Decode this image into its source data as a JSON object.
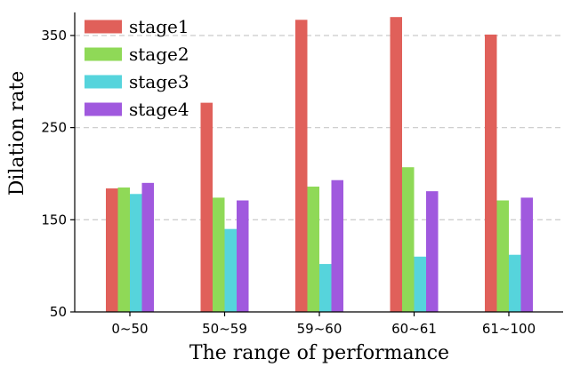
{
  "chart_data": {
    "type": "bar",
    "xlabel": "The range of performance",
    "ylabel": "Dilation rate",
    "categories": [
      "0~50",
      "50~59",
      "59~60",
      "60~61",
      "61~100"
    ],
    "ylim": [
      50,
      375
    ],
    "yticks": [
      50,
      150,
      250,
      350
    ],
    "grid": "horizontal dashed at y ticks",
    "legend_position": "top-left",
    "series": [
      {
        "name": "stage1",
        "color": "#e0605a",
        "values": [
          184,
          277,
          367,
          370,
          351
        ]
      },
      {
        "name": "stage2",
        "color": "#8fd957",
        "values": [
          185,
          174,
          186,
          207,
          171
        ]
      },
      {
        "name": "stage3",
        "color": "#56d4dc",
        "values": [
          178,
          140,
          102,
          110,
          112
        ]
      },
      {
        "name": "stage4",
        "color": "#a059de",
        "values": [
          190,
          171,
          193,
          181,
          174
        ]
      }
    ]
  }
}
